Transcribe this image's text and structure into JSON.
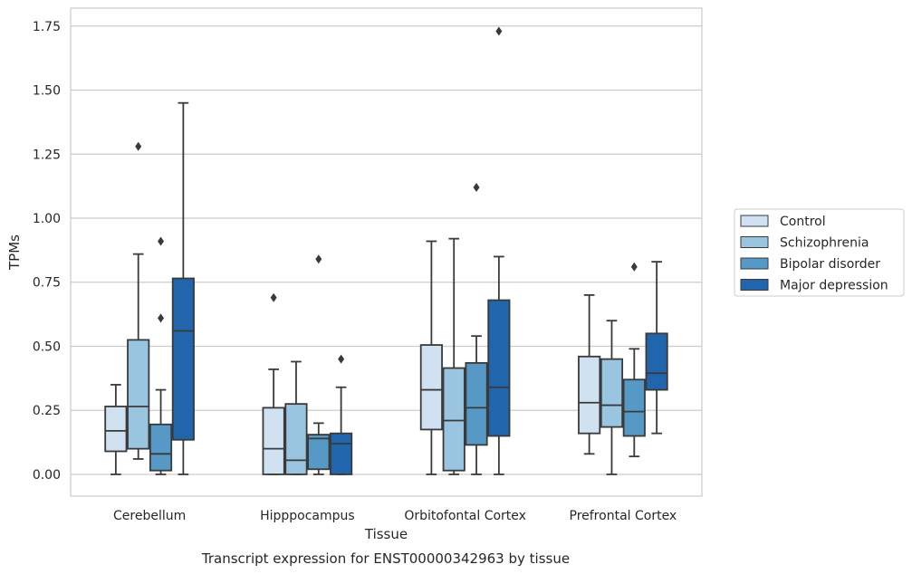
{
  "chart_data": {
    "type": "box",
    "xlabel": "Tissue",
    "ylabel": "TPMs",
    "caption": "Transcript expression for ENST00000342963 by tissue",
    "ylim": [
      -0.085,
      1.82
    ],
    "yticks": [
      "0.00",
      "0.25",
      "0.50",
      "0.75",
      "1.00",
      "1.25",
      "1.50",
      "1.75"
    ],
    "grid": "horizontal",
    "legend_position": "right",
    "categories": [
      "Cerebellum",
      "Hipppocampus",
      "Orbitofontal Cortex",
      "Prefrontal Cortex"
    ],
    "series": [
      {
        "name": "Control",
        "color": "#d0e1f2",
        "boxes": [
          {
            "whislo": 0.0,
            "q1": 0.09,
            "med": 0.17,
            "q3": 0.265,
            "whishi": 0.35,
            "fliers": []
          },
          {
            "whislo": 0.0,
            "q1": 0.0,
            "med": 0.1,
            "q3": 0.26,
            "whishi": 0.41,
            "fliers": [
              0.69
            ]
          },
          {
            "whislo": 0.0,
            "q1": 0.175,
            "med": 0.33,
            "q3": 0.505,
            "whishi": 0.91,
            "fliers": []
          },
          {
            "whislo": 0.08,
            "q1": 0.16,
            "med": 0.28,
            "q3": 0.46,
            "whishi": 0.7,
            "fliers": []
          }
        ]
      },
      {
        "name": "Schizophrenia",
        "color": "#9ac5e0",
        "boxes": [
          {
            "whislo": 0.06,
            "q1": 0.1,
            "med": 0.265,
            "q3": 0.525,
            "whishi": 0.86,
            "fliers": [
              1.28
            ]
          },
          {
            "whislo": 0.0,
            "q1": 0.0,
            "med": 0.055,
            "q3": 0.275,
            "whishi": 0.44,
            "fliers": []
          },
          {
            "whislo": 0.0,
            "q1": 0.015,
            "med": 0.21,
            "q3": 0.415,
            "whishi": 0.92,
            "fliers": []
          },
          {
            "whislo": 0.0,
            "q1": 0.185,
            "med": 0.27,
            "q3": 0.45,
            "whishi": 0.6,
            "fliers": []
          }
        ]
      },
      {
        "name": "Bipolar disorder",
        "color": "#5799c6",
        "boxes": [
          {
            "whislo": 0.0,
            "q1": 0.015,
            "med": 0.08,
            "q3": 0.195,
            "whishi": 0.33,
            "fliers": [
              0.61,
              0.91
            ]
          },
          {
            "whislo": 0.0,
            "q1": 0.02,
            "med": 0.14,
            "q3": 0.155,
            "whishi": 0.2,
            "fliers": [
              0.84
            ]
          },
          {
            "whislo": 0.0,
            "q1": 0.115,
            "med": 0.26,
            "q3": 0.435,
            "whishi": 0.54,
            "fliers": [
              1.12
            ]
          },
          {
            "whislo": 0.07,
            "q1": 0.15,
            "med": 0.245,
            "q3": 0.37,
            "whishi": 0.49,
            "fliers": [
              0.81
            ]
          }
        ]
      },
      {
        "name": "Major depression",
        "color": "#2166ac",
        "boxes": [
          {
            "whislo": 0.0,
            "q1": 0.135,
            "med": 0.56,
            "q3": 0.765,
            "whishi": 1.45,
            "fliers": []
          },
          {
            "whislo": 0.0,
            "q1": 0.0,
            "med": 0.12,
            "q3": 0.16,
            "whishi": 0.34,
            "fliers": [
              0.45
            ]
          },
          {
            "whislo": 0.0,
            "q1": 0.15,
            "med": 0.34,
            "q3": 0.68,
            "whishi": 0.85,
            "fliers": [
              1.73
            ]
          },
          {
            "whislo": 0.16,
            "q1": 0.33,
            "med": 0.395,
            "q3": 0.55,
            "whishi": 0.83,
            "fliers": []
          }
        ]
      }
    ]
  }
}
